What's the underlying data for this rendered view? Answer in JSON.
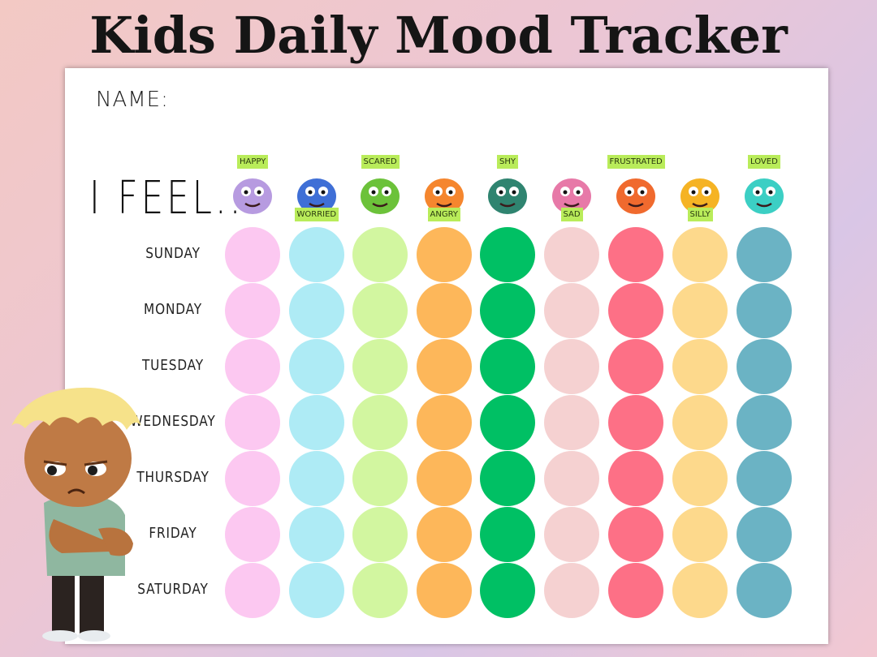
{
  "title": "Kids Daily Mood Tracker",
  "name_label": "NAME:",
  "feel_label": "I FEEL...",
  "days": [
    "SUNDAY",
    "MONDAY",
    "TUESDAY",
    "WEDNESDAY",
    "THURSDAY",
    "FRIDAY",
    "SATURDAY"
  ],
  "moods": [
    {
      "label": "HAPPY",
      "color": "#fcc8f1",
      "monster_color": "#b79be0"
    },
    {
      "label": "WORRIED",
      "color": "#aeebf5",
      "monster_color": "#3f6fd6"
    },
    {
      "label": "SCARED",
      "color": "#d2f6a0",
      "monster_color": "#6cc23a"
    },
    {
      "label": "ANGRY",
      "color": "#fdb75a",
      "monster_color": "#f5862e"
    },
    {
      "label": "SHY",
      "color": "#00c064",
      "monster_color": "#2f8470"
    },
    {
      "label": "SAD",
      "color": "#f5d1d1",
      "monster_color": "#e779a8"
    },
    {
      "label": "FRUSTRATED",
      "color": "#fd7086",
      "monster_color": "#f06a2e"
    },
    {
      "label": "SILLY",
      "color": "#fdd98c",
      "monster_color": "#f5b324"
    },
    {
      "label": "LOVED",
      "color": "#6bb3c4",
      "monster_color": "#3ccfc4"
    }
  ]
}
